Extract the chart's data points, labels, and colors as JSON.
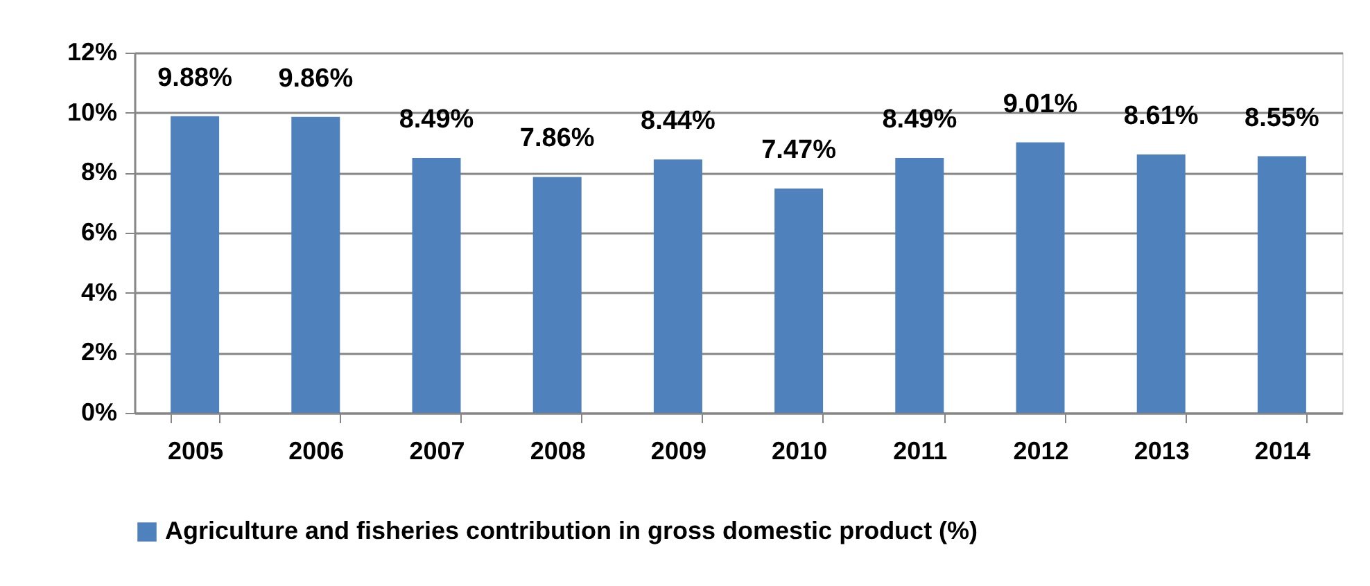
{
  "chart_data": {
    "type": "bar",
    "categories": [
      "2005",
      "2006",
      "2007",
      "2008",
      "2009",
      "2010",
      "2011",
      "2012",
      "2013",
      "2014"
    ],
    "series": [
      {
        "name": "Agriculture and fisheries contribution in gross domestic product (%)",
        "color": "#4f81bd",
        "values": [
          9.88,
          9.86,
          8.49,
          7.86,
          8.44,
          7.47,
          8.49,
          9.01,
          8.61,
          8.55
        ],
        "value_labels": [
          "9.88%",
          "9.86%",
          "8.49%",
          "7.86%",
          "8.44%",
          "7.47%",
          "8.49%",
          "9.01%",
          "8.61%",
          "8.55%"
        ]
      }
    ],
    "ylim": [
      0,
      12
    ],
    "yticks": [
      {
        "value": 0,
        "label": "0%"
      },
      {
        "value": 2,
        "label": "2%"
      },
      {
        "value": 4,
        "label": "4%"
      },
      {
        "value": 6,
        "label": "6%"
      },
      {
        "value": 8,
        "label": "8%"
      },
      {
        "value": 10,
        "label": "10%"
      },
      {
        "value": 12,
        "label": "12%"
      }
    ],
    "grid": "y",
    "legend": "bottom"
  }
}
